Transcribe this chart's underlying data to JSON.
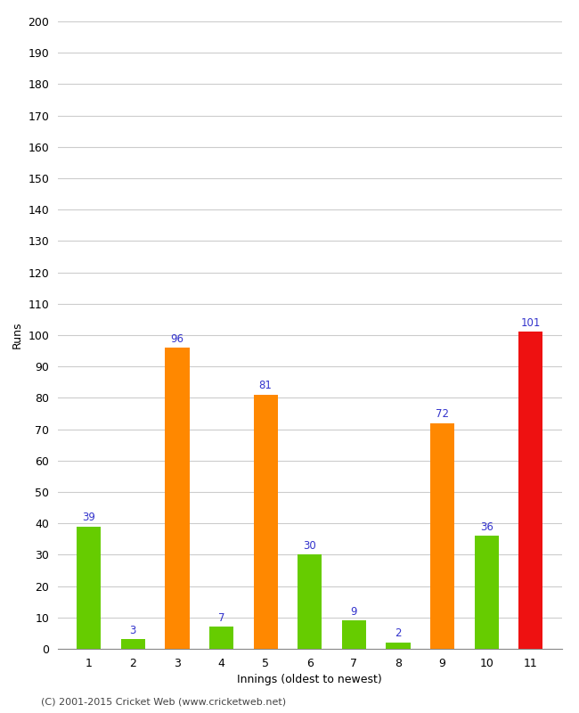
{
  "innings": [
    1,
    2,
    3,
    4,
    5,
    6,
    7,
    8,
    9,
    10,
    11
  ],
  "runs": [
    39,
    3,
    96,
    7,
    81,
    30,
    9,
    2,
    72,
    36,
    101
  ],
  "colors": [
    "#66cc00",
    "#66cc00",
    "#ff8800",
    "#66cc00",
    "#ff8800",
    "#66cc00",
    "#66cc00",
    "#66cc00",
    "#ff8800",
    "#66cc00",
    "#ee1111"
  ],
  "xlabel": "Innings (oldest to newest)",
  "ylabel": "Runs",
  "ylim": [
    0,
    200
  ],
  "yticks": [
    0,
    10,
    20,
    30,
    40,
    50,
    60,
    70,
    80,
    90,
    100,
    110,
    120,
    130,
    140,
    150,
    160,
    170,
    180,
    190,
    200
  ],
  "footer": "(C) 2001-2015 Cricket Web (www.cricketweb.net)",
  "label_color": "#3333cc",
  "background_color": "#ffffff",
  "grid_color": "#cccccc",
  "bar_width": 0.55
}
